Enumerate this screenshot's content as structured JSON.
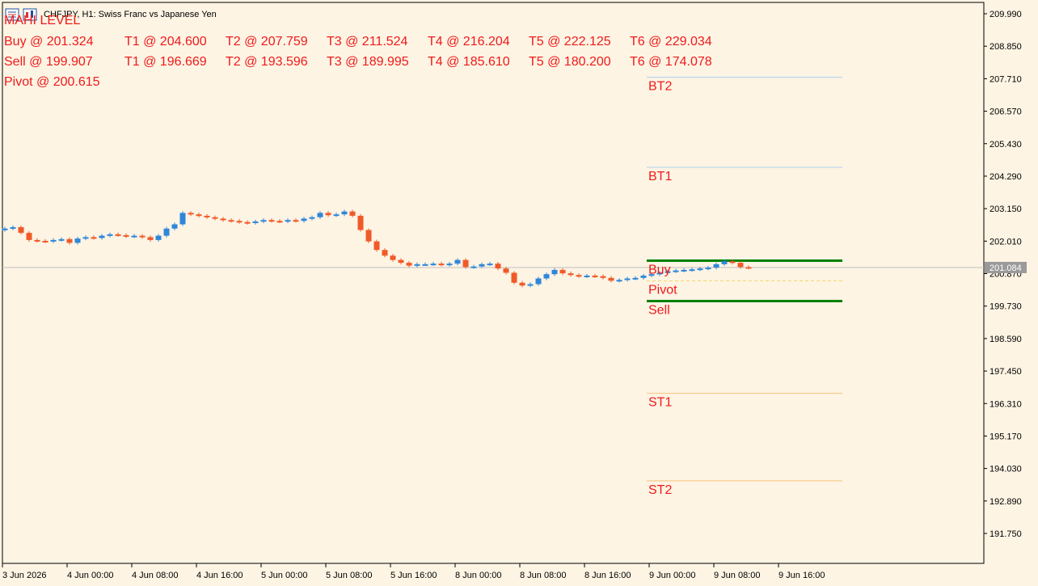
{
  "header": {
    "symbol_title": "CHFJPY, H1:  Swiss Franc vs Japanese Yen",
    "indicator_title": "MAHI LEVEL"
  },
  "levels_table": {
    "buy_row": [
      "Buy @ 201.324",
      "T1 @ 204.600",
      "T2 @ 207.759",
      "T3 @ 211.524",
      "T4 @ 216.204",
      "T5 @ 222.125",
      "T6 @ 229.034"
    ],
    "sell_row": [
      "Sell @ 199.907",
      "T1 @ 196.669",
      "T2 @ 193.596",
      "T3 @ 189.995",
      "T4 @ 185.610",
      "T5 @ 180.200",
      "T6 @ 174.078"
    ],
    "pivot": "Pivot @ 200.615"
  },
  "chart_data": {
    "type": "candlestick",
    "symbol": "CHFJPY",
    "timeframe": "H1",
    "y_axis_ticks": [
      "209.990",
      "208.850",
      "207.710",
      "206.570",
      "205.430",
      "204.290",
      "203.150",
      "202.010",
      "200.870",
      "199.730",
      "198.590",
      "197.450",
      "196.310",
      "195.170",
      "194.030",
      "192.890",
      "191.750"
    ],
    "ylim": [
      191.18,
      210.42
    ],
    "x_axis_ticks": [
      "3 Jun 2026",
      "4 Jun 00:00",
      "4 Jun 08:00",
      "4 Jun 16:00",
      "5 Jun 00:00",
      "5 Jun 08:00",
      "5 Jun 16:00",
      "8 Jun 00:00",
      "8 Jun 08:00",
      "8 Jun 16:00",
      "9 Jun 00:00",
      "9 Jun 08:00",
      "9 Jun 16:00"
    ],
    "current_price": "201.084",
    "level_lines": [
      {
        "label": "BT2",
        "price": 207.759,
        "color": "#a9cfee",
        "width": 1
      },
      {
        "label": "BT1",
        "price": 204.6,
        "color": "#a9cfee",
        "width": 1
      },
      {
        "label": "Buy",
        "price": 201.324,
        "color": "#008000",
        "width": 3
      },
      {
        "label": "Pivot",
        "price": 200.615,
        "color": "#f5d76e",
        "width": 1,
        "dashed": true
      },
      {
        "label": "Sell",
        "price": 199.907,
        "color": "#008000",
        "width": 3
      },
      {
        "label": "ST1",
        "price": 196.669,
        "color": "#f5c27a",
        "width": 1
      },
      {
        "label": "ST2",
        "price": 193.596,
        "color": "#f5c27a",
        "width": 1
      }
    ],
    "closes": [
      202.45,
      202.5,
      202.3,
      202.05,
      202.02,
      202.0,
      202.05,
      202.08,
      201.95,
      202.1,
      202.15,
      202.12,
      202.2,
      202.25,
      202.22,
      202.18,
      202.2,
      202.15,
      202.05,
      202.2,
      202.45,
      202.6,
      203.0,
      202.95,
      202.9,
      202.85,
      202.8,
      202.75,
      202.72,
      202.68,
      202.65,
      202.7,
      202.75,
      202.72,
      202.7,
      202.75,
      202.72,
      202.8,
      202.85,
      203.0,
      202.92,
      202.95,
      203.05,
      202.9,
      202.4,
      202.0,
      201.7,
      201.5,
      201.35,
      201.25,
      201.15,
      201.2,
      201.2,
      201.22,
      201.18,
      201.22,
      201.35,
      201.1,
      201.12,
      201.2,
      201.22,
      201.05,
      200.9,
      200.55,
      200.45,
      200.5,
      200.7,
      200.85,
      201.0,
      200.88,
      200.82,
      200.78,
      200.8,
      200.78,
      200.72,
      200.62,
      200.65,
      200.7,
      200.72,
      200.8,
      200.85,
      200.9,
      200.95,
      200.98,
      201.0,
      201.02,
      201.05,
      201.08,
      201.2,
      201.3,
      201.25,
      201.1,
      201.08
    ]
  }
}
